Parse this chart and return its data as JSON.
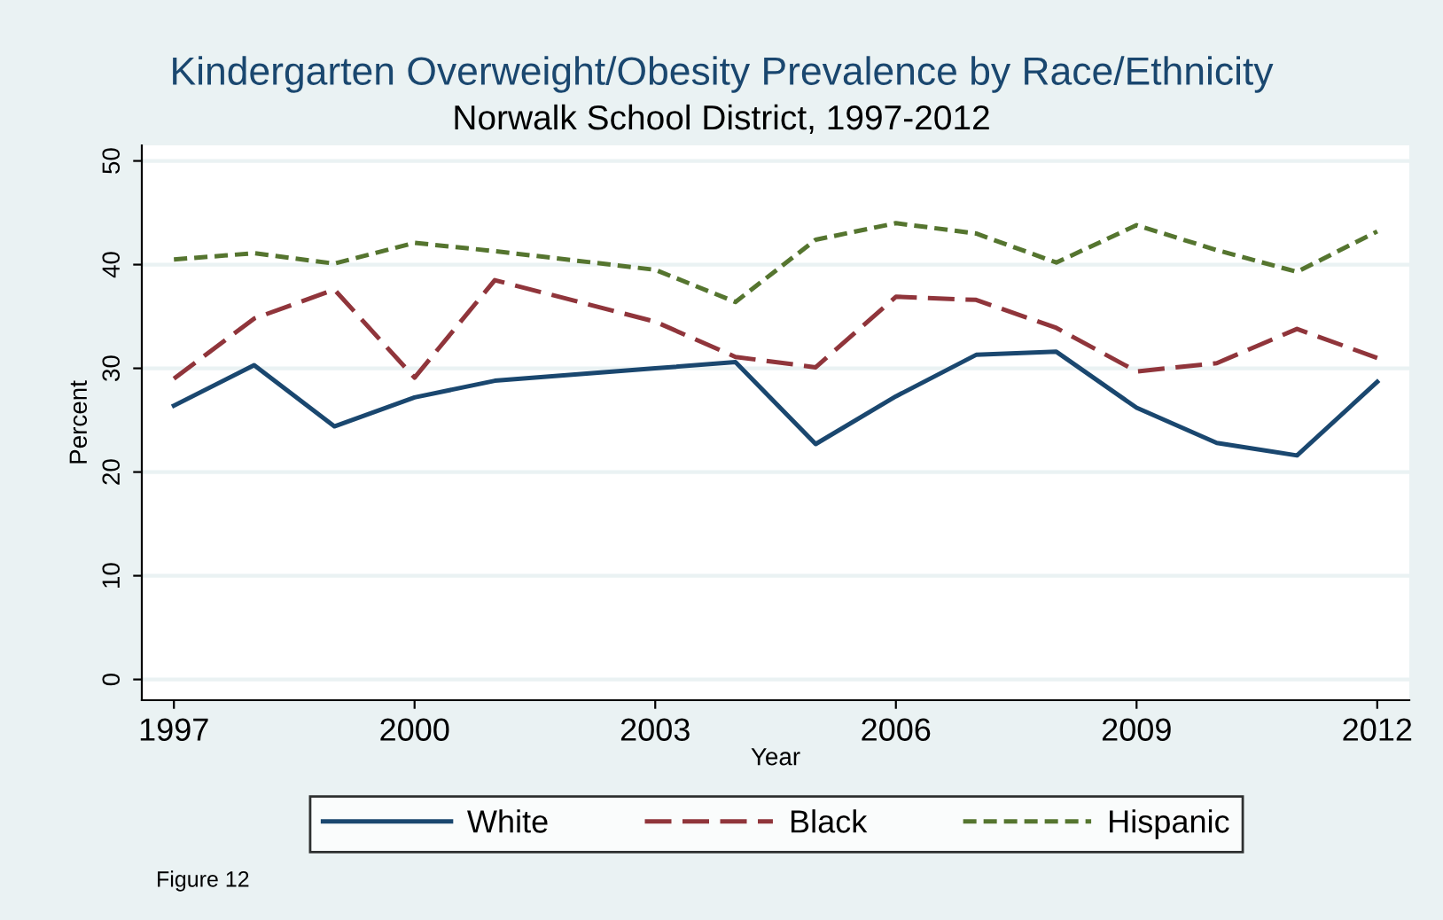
{
  "chart_data": {
    "type": "line",
    "title": "Kindergarten Overweight/Obesity Prevalence by Race/Ethnicity",
    "subtitle": "Norwalk School District, 1997-2012",
    "xlabel": "Year",
    "ylabel": "Percent",
    "x": [
      1997,
      1998,
      1999,
      2000,
      2001,
      2003,
      2004,
      2005,
      2006,
      2007,
      2008,
      2009,
      2010,
      2011,
      2012
    ],
    "series": [
      {
        "name": "White",
        "color": "#1a476f",
        "line_style": "solid",
        "values": [
          26.4,
          30.3,
          24.4,
          27.2,
          28.8,
          30.0,
          30.6,
          22.7,
          27.3,
          31.3,
          31.6,
          26.2,
          22.8,
          21.6,
          28.7
        ]
      },
      {
        "name": "Black",
        "color": "#90353b",
        "line_style": "longdash",
        "values": [
          29.0,
          34.8,
          37.6,
          29.1,
          38.5,
          34.5,
          31.1,
          30.1,
          36.9,
          36.6,
          33.9,
          29.7,
          30.5,
          33.8,
          31.0
        ]
      },
      {
        "name": "Hispanic",
        "color": "#55752f",
        "line_style": "dashed",
        "values": [
          40.5,
          41.1,
          40.1,
          42.1,
          41.3,
          39.5,
          36.4,
          42.4,
          44.0,
          43.0,
          40.2,
          43.8,
          41.4,
          39.3,
          43.2
        ]
      }
    ],
    "xlim": [
      1996.6,
      2012.4
    ],
    "ylim": [
      -2,
      51.5
    ],
    "xticks": [
      1997,
      2000,
      2003,
      2006,
      2009,
      2012
    ],
    "yticks": [
      0,
      10,
      20,
      30,
      40,
      50
    ],
    "grid": "y",
    "legend": "bottom",
    "marker": "none",
    "annotations": [
      "Figure 12"
    ]
  }
}
